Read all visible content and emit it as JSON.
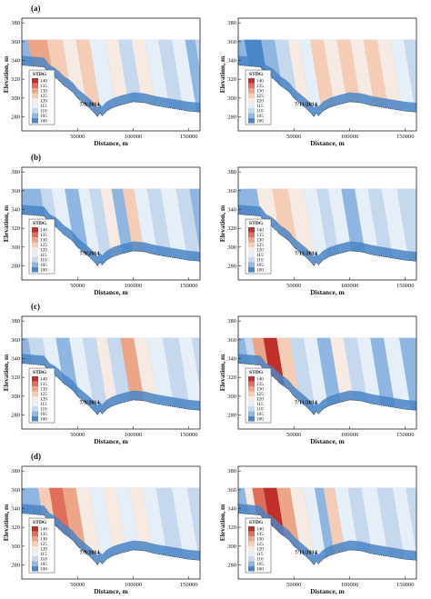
{
  "figure": {
    "title": "",
    "colors": {
      "c140": "#c0302a",
      "c135": "#df6f5a",
      "c130": "#eda588",
      "c125": "#f5cdb7",
      "c120": "#f7eae2",
      "c115": "#e6eef7",
      "c110": "#c5d8ee",
      "c105": "#8fb6e0",
      "c100": "#4a85c6",
      "ground": "#ffffff",
      "bank": "#31699f"
    }
  },
  "chart_data": [
    {
      "type": "heatmap",
      "panel": "a-left",
      "panel_label": "(a)",
      "date": "7/9/2014",
      "xlabel": "Distance, m",
      "ylabel": "Elevation, m",
      "xlim": [
        0,
        160000
      ],
      "ylim": [
        265,
        385
      ],
      "xticks": [
        "50000",
        "100000",
        "150000"
      ],
      "yticks": [
        "280",
        "300",
        "320",
        "340",
        "360",
        "380"
      ],
      "legend_title": "STDG",
      "legend_levels": [
        "140",
        "135",
        "130",
        "125",
        "120",
        "115",
        "110",
        "105",
        "100"
      ],
      "bands": [
        [
          5000,
          130
        ],
        [
          22000,
          125
        ],
        [
          36000,
          120
        ],
        [
          48000,
          125
        ],
        [
          60000,
          115
        ],
        [
          74000,
          120
        ],
        [
          86000,
          110
        ],
        [
          98000,
          120
        ],
        [
          110000,
          115
        ],
        [
          122000,
          110
        ],
        [
          134000,
          115
        ],
        [
          146000,
          105
        ],
        [
          155000,
          110
        ]
      ]
    },
    {
      "type": "heatmap",
      "panel": "a-right",
      "panel_label": "",
      "date": "7/11/2014",
      "xlabel": "Distance, m",
      "ylabel": "Elevation, m",
      "xlim": [
        0,
        160000
      ],
      "ylim": [
        265,
        385
      ],
      "xticks": [
        "50000",
        "100000",
        "150000"
      ],
      "yticks": [
        "280",
        "300",
        "320",
        "340",
        "360",
        "380"
      ],
      "legend_title": "STDG",
      "legend_levels": [
        "140",
        "135",
        "130",
        "125",
        "120",
        "115",
        "110",
        "105",
        "100"
      ],
      "bands": [
        [
          5000,
          100
        ],
        [
          20000,
          105
        ],
        [
          32000,
          110
        ],
        [
          44000,
          120
        ],
        [
          54000,
          115
        ],
        [
          64000,
          125
        ],
        [
          76000,
          120
        ],
        [
          88000,
          125
        ],
        [
          100000,
          120
        ],
        [
          112000,
          125
        ],
        [
          124000,
          120
        ],
        [
          136000,
          115
        ],
        [
          148000,
          110
        ]
      ]
    },
    {
      "type": "heatmap",
      "panel": "b-left",
      "panel_label": "(b)",
      "date": "7/9/2014",
      "xlabel": "Distance, m",
      "ylabel": "Elevation, m",
      "xlim": [
        0,
        160000
      ],
      "ylim": [
        265,
        385
      ],
      "xticks": [
        "50000",
        "100000",
        "150000"
      ],
      "yticks": [
        "280",
        "300",
        "320",
        "340",
        "360",
        "380"
      ],
      "legend_title": "STDG",
      "legend_levels": [
        "140",
        "135",
        "130",
        "125",
        "120",
        "115",
        "110",
        "105",
        "100"
      ],
      "bands": [
        [
          5000,
          105
        ],
        [
          16000,
          110
        ],
        [
          26000,
          115
        ],
        [
          38000,
          105
        ],
        [
          50000,
          115
        ],
        [
          60000,
          110
        ],
        [
          70000,
          120
        ],
        [
          80000,
          105
        ],
        [
          90000,
          125
        ],
        [
          100000,
          115
        ],
        [
          112000,
          110
        ],
        [
          124000,
          115
        ],
        [
          138000,
          110
        ],
        [
          150000,
          105
        ]
      ]
    },
    {
      "type": "heatmap",
      "panel": "b-right",
      "panel_label": "",
      "date": "7/11/2014",
      "xlabel": "Distance, m",
      "ylabel": "Elevation, m",
      "xlim": [
        0,
        160000
      ],
      "ylim": [
        265,
        385
      ],
      "xticks": [
        "50000",
        "100000",
        "150000"
      ],
      "yticks": [
        "280",
        "300",
        "320",
        "340",
        "360",
        "380"
      ],
      "legend_title": "STDG",
      "legend_levels": [
        "140",
        "135",
        "130",
        "125",
        "120",
        "115",
        "110",
        "105",
        "100"
      ],
      "bands": [
        [
          5000,
          105
        ],
        [
          16000,
          120
        ],
        [
          30000,
          125
        ],
        [
          44000,
          120
        ],
        [
          58000,
          115
        ],
        [
          70000,
          110
        ],
        [
          80000,
          115
        ],
        [
          92000,
          105
        ],
        [
          104000,
          115
        ],
        [
          116000,
          110
        ],
        [
          128000,
          115
        ],
        [
          142000,
          110
        ]
      ]
    },
    {
      "type": "heatmap",
      "panel": "c-left",
      "panel_label": "(c)",
      "date": "7/9/2014",
      "xlabel": "Distance, m",
      "ylabel": "Elevation, m",
      "xlim": [
        0,
        160000
      ],
      "ylim": [
        265,
        385
      ],
      "xticks": [
        "50000",
        "100000",
        "150000"
      ],
      "yticks": [
        "280",
        "300",
        "320",
        "340",
        "360",
        "380"
      ],
      "legend_title": "STDG",
      "legend_levels": [
        "140",
        "135",
        "130",
        "125",
        "120",
        "115",
        "110",
        "105",
        "100"
      ],
      "bands": [
        [
          5000,
          110
        ],
        [
          18000,
          115
        ],
        [
          30000,
          105
        ],
        [
          42000,
          115
        ],
        [
          54000,
          110
        ],
        [
          66000,
          120
        ],
        [
          76000,
          110
        ],
        [
          88000,
          130
        ],
        [
          100000,
          120
        ],
        [
          112000,
          115
        ],
        [
          126000,
          110
        ],
        [
          140000,
          115
        ],
        [
          152000,
          110
        ]
      ]
    },
    {
      "type": "heatmap",
      "panel": "c-right",
      "panel_label": "",
      "date": "7/11/2014",
      "xlabel": "Distance, m",
      "ylabel": "Elevation, m",
      "xlim": [
        0,
        160000
      ],
      "ylim": [
        265,
        385
      ],
      "xticks": [
        "50000",
        "100000",
        "150000"
      ],
      "yticks": [
        "280",
        "300",
        "320",
        "340",
        "360",
        "380"
      ],
      "legend_title": "STDG",
      "legend_levels": [
        "140",
        "135",
        "130",
        "125",
        "120",
        "115",
        "110",
        "105",
        "100"
      ],
      "bands": [
        [
          5000,
          110
        ],
        [
          12000,
          130
        ],
        [
          22000,
          140
        ],
        [
          34000,
          125
        ],
        [
          46000,
          110
        ],
        [
          58000,
          115
        ],
        [
          70000,
          105
        ],
        [
          82000,
          120
        ],
        [
          94000,
          110
        ],
        [
          106000,
          115
        ],
        [
          118000,
          105
        ],
        [
          130000,
          115
        ],
        [
          144000,
          105
        ]
      ]
    },
    {
      "type": "heatmap",
      "panel": "d-left",
      "panel_label": "(d)",
      "date": "7/9/2014",
      "xlabel": "Distance, m",
      "ylabel": "Elevation, m",
      "xlim": [
        0,
        160000
      ],
      "ylim": [
        265,
        385
      ],
      "xticks": [
        "50000",
        "100000",
        "150000"
      ],
      "yticks": [
        "280",
        "300",
        "320",
        "340",
        "360",
        "380"
      ],
      "legend_title": "STDG",
      "legend_levels": [
        "140",
        "135",
        "130",
        "125",
        "120",
        "115",
        "110",
        "105",
        "100"
      ],
      "bands": [
        [
          5000,
          105
        ],
        [
          14000,
          125
        ],
        [
          24000,
          135
        ],
        [
          36000,
          130
        ],
        [
          48000,
          120
        ],
        [
          60000,
          115
        ],
        [
          72000,
          120
        ],
        [
          84000,
          115
        ],
        [
          96000,
          120
        ],
        [
          108000,
          115
        ],
        [
          120000,
          110
        ],
        [
          134000,
          115
        ],
        [
          148000,
          110
        ]
      ]
    },
    {
      "type": "heatmap",
      "panel": "d-right",
      "panel_label": "",
      "date": "7/11/2014",
      "xlabel": "Distance, m",
      "ylabel": "Elevation, m",
      "xlim": [
        0,
        160000
      ],
      "ylim": [
        265,
        385
      ],
      "xticks": [
        "50000",
        "100000",
        "150000"
      ],
      "yticks": [
        "280",
        "300",
        "320",
        "340",
        "360",
        "380"
      ],
      "legend_title": "STDG",
      "legend_levels": [
        "140",
        "135",
        "130",
        "125",
        "120",
        "115",
        "110",
        "105",
        "100"
      ],
      "bands": [
        [
          5000,
          120
        ],
        [
          12000,
          135
        ],
        [
          22000,
          140
        ],
        [
          34000,
          130
        ],
        [
          46000,
          120
        ],
        [
          58000,
          115
        ],
        [
          68000,
          105
        ],
        [
          76000,
          125
        ],
        [
          86000,
          115
        ],
        [
          98000,
          110
        ],
        [
          110000,
          115
        ],
        [
          124000,
          110
        ],
        [
          138000,
          115
        ],
        [
          150000,
          110
        ]
      ]
    }
  ]
}
